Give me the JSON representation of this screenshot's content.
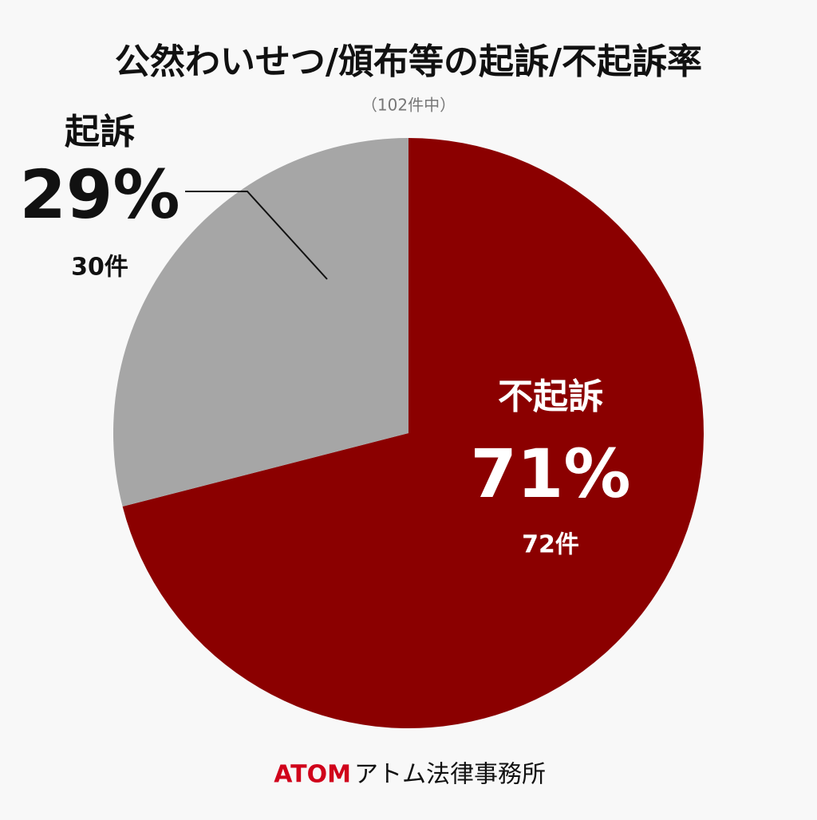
{
  "chart_data": {
    "type": "pie",
    "title": "公然わいせつ/頒布等の起訴/不起訴率",
    "subtitle": "（102件中）",
    "categories": [
      "不起訴",
      "起訴"
    ],
    "values": [
      71,
      29
    ],
    "value_labels": [
      "71%",
      "29%"
    ],
    "counts": [
      72,
      30
    ],
    "count_labels": [
      "72件",
      "30件"
    ],
    "colors": [
      "#8b0000",
      "#a6a6a6"
    ]
  },
  "footer": {
    "brand": "ATOM",
    "firm": "アトム法律事務所"
  }
}
